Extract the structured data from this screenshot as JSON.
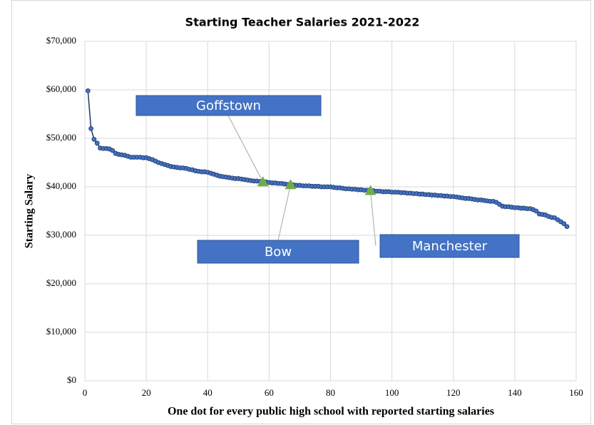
{
  "chart_data": {
    "type": "scatter",
    "title": "Starting Teacher Salaries 2021-2022",
    "x_label": "One dot for every public high school with reported starting salaries",
    "y_label": "Starting Salary",
    "xlim": [
      0,
      160
    ],
    "xticks": [
      0,
      20,
      40,
      60,
      80,
      100,
      120,
      140,
      160
    ],
    "ylim": [
      0,
      70000
    ],
    "yticks": [
      {
        "value": 0,
        "label": "$0"
      },
      {
        "value": 10000,
        "label": "$10,000"
      },
      {
        "value": 20000,
        "label": "$20,000"
      },
      {
        "value": 30000,
        "label": "$30,000"
      },
      {
        "value": 40000,
        "label": "$40,000"
      },
      {
        "value": 50000,
        "label": "$50,000"
      },
      {
        "value": 60000,
        "label": "$60,000"
      },
      {
        "value": 70000,
        "label": "$70,000"
      }
    ],
    "grid": true,
    "series": [
      {
        "color": "#4472c4",
        "x": [
          1,
          2,
          3,
          4,
          5,
          6,
          7,
          8,
          9,
          10,
          11,
          12,
          13,
          14,
          15,
          16,
          17,
          18,
          19,
          20,
          21,
          22,
          23,
          24,
          25,
          26,
          27,
          28,
          29,
          30,
          31,
          32,
          33,
          34,
          35,
          36,
          37,
          38,
          39,
          40,
          41,
          42,
          43,
          44,
          45,
          46,
          47,
          48,
          49,
          50,
          51,
          52,
          53,
          54,
          55,
          56,
          57,
          58,
          59,
          60,
          61,
          62,
          63,
          64,
          65,
          66,
          67,
          68,
          69,
          70,
          71,
          72,
          73,
          74,
          75,
          76,
          77,
          78,
          79,
          80,
          81,
          82,
          83,
          84,
          85,
          86,
          87,
          88,
          89,
          90,
          91,
          92,
          93,
          94,
          95,
          96,
          97,
          98,
          99,
          100,
          101,
          102,
          103,
          104,
          105,
          106,
          107,
          108,
          109,
          110,
          111,
          112,
          113,
          114,
          115,
          116,
          117,
          118,
          119,
          120,
          121,
          122,
          123,
          124,
          125,
          126,
          127,
          128,
          129,
          130,
          131,
          132,
          133,
          134,
          135,
          136,
          137,
          138,
          139,
          140,
          141,
          142,
          143,
          144,
          145,
          146,
          147,
          148,
          149,
          150,
          151,
          152,
          153,
          154,
          155,
          156,
          157
        ],
        "values": [
          59800,
          52000,
          49800,
          49000,
          48000,
          47900,
          47900,
          47800,
          47500,
          46900,
          46700,
          46600,
          46500,
          46300,
          46100,
          46100,
          46100,
          46100,
          46000,
          46000,
          45800,
          45600,
          45300,
          45000,
          44800,
          44600,
          44400,
          44200,
          44100,
          44000,
          43900,
          43900,
          43800,
          43600,
          43500,
          43300,
          43200,
          43100,
          43100,
          43000,
          42800,
          42600,
          42400,
          42200,
          42100,
          42000,
          41900,
          41800,
          41700,
          41700,
          41600,
          41500,
          41400,
          41300,
          41200,
          41200,
          41100,
          41000,
          41000,
          40900,
          40800,
          40800,
          40700,
          40700,
          40600,
          40500,
          40400,
          40400,
          40300,
          40300,
          40200,
          40200,
          40200,
          40100,
          40100,
          40100,
          40000,
          40000,
          40000,
          40000,
          39900,
          39800,
          39800,
          39700,
          39600,
          39600,
          39500,
          39500,
          39400,
          39400,
          39300,
          39300,
          39200,
          39200,
          39100,
          39100,
          39000,
          39000,
          39000,
          38900,
          38900,
          38900,
          38800,
          38800,
          38700,
          38700,
          38600,
          38600,
          38500,
          38500,
          38400,
          38400,
          38300,
          38300,
          38200,
          38200,
          38100,
          38100,
          38000,
          38000,
          37900,
          37800,
          37700,
          37600,
          37600,
          37500,
          37400,
          37300,
          37300,
          37200,
          37100,
          37000,
          37000,
          36800,
          36400,
          36000,
          35900,
          35900,
          35800,
          35700,
          35700,
          35600,
          35600,
          35500,
          35500,
          35300,
          35000,
          34400,
          34300,
          34200,
          33900,
          33700,
          33600,
          33200,
          32800,
          32400,
          31800
        ]
      }
    ],
    "annotations": [
      {
        "text": "Goffstown",
        "x": 58,
        "y": 41000
      },
      {
        "text": "Bow",
        "x": 67,
        "y": 40400
      },
      {
        "text": "Manchester",
        "x": 93,
        "y": 39200
      }
    ],
    "annotation_color": "#70ad47",
    "box_color": "#4472c4"
  }
}
